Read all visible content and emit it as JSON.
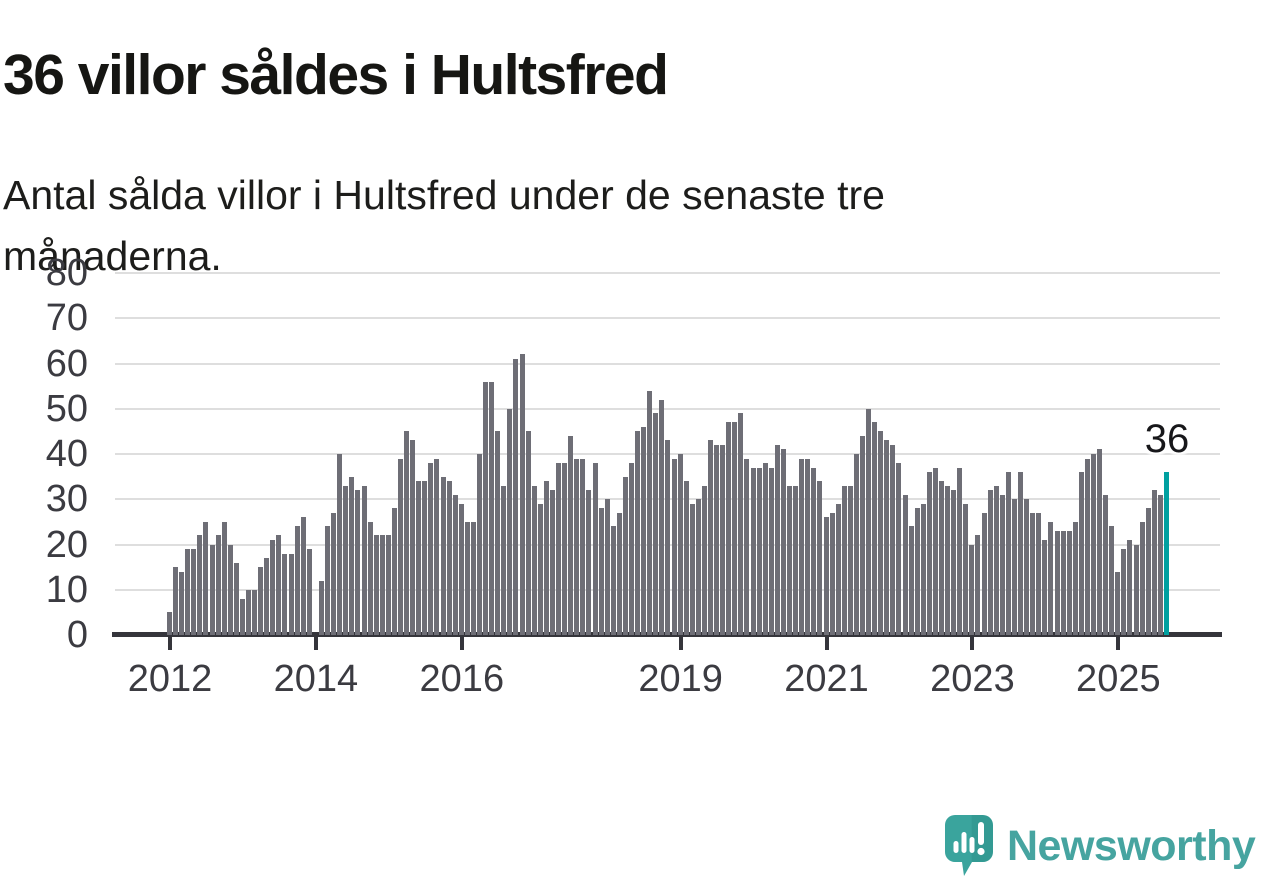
{
  "header": {
    "title": "36 villor såldes i Hultsfred",
    "subtitle": "Antal sålda villor i Hultsfred under de senaste tre månaderna."
  },
  "chart_data": {
    "type": "bar",
    "title": "36 villor såldes i Hultsfred",
    "subtitle": "Antal sålda villor i Hultsfred under de senaste tre månaderna.",
    "xlabel": "",
    "ylabel": "",
    "ylim": [
      0,
      80
    ],
    "y_ticks": [
      0,
      10,
      20,
      30,
      40,
      50,
      60,
      70,
      80
    ],
    "grid": true,
    "frequency": "monthly",
    "start_year": 2012,
    "x_ticks": [
      {
        "label": "2012",
        "index": 0
      },
      {
        "label": "2014",
        "index": 24
      },
      {
        "label": "2016",
        "index": 48
      },
      {
        "label": "2019",
        "index": 84
      },
      {
        "label": "2021",
        "index": 108
      },
      {
        "label": "2023",
        "index": 132
      },
      {
        "label": "2025",
        "index": 156
      }
    ],
    "values": [
      5,
      15,
      14,
      19,
      19,
      22,
      25,
      20,
      22,
      25,
      20,
      16,
      8,
      10,
      10,
      15,
      17,
      21,
      22,
      18,
      18,
      24,
      26,
      19,
      0,
      12,
      24,
      27,
      40,
      33,
      35,
      32,
      33,
      25,
      22,
      22,
      22,
      28,
      39,
      45,
      43,
      34,
      34,
      38,
      39,
      35,
      34,
      31,
      29,
      25,
      25,
      40,
      56,
      56,
      45,
      33,
      50,
      61,
      62,
      45,
      33,
      29,
      34,
      32,
      38,
      38,
      44,
      39,
      39,
      32,
      38,
      28,
      30,
      24,
      27,
      35,
      38,
      45,
      46,
      54,
      49,
      52,
      43,
      39,
      40,
      34,
      29,
      30,
      33,
      43,
      42,
      42,
      47,
      47,
      49,
      39,
      37,
      37,
      38,
      37,
      42,
      41,
      33,
      33,
      39,
      39,
      37,
      34,
      26,
      27,
      29,
      33,
      33,
      40,
      44,
      50,
      47,
      45,
      43,
      42,
      38,
      31,
      24,
      28,
      29,
      36,
      37,
      34,
      33,
      32,
      37,
      29,
      20,
      22,
      27,
      32,
      33,
      31,
      36,
      30,
      36,
      30,
      27,
      27,
      21,
      25,
      23,
      23,
      23,
      25,
      36,
      39,
      40,
      41,
      31,
      24,
      14,
      19,
      21,
      20,
      25,
      28,
      32,
      31,
      36
    ],
    "highlight": {
      "index": 164,
      "value": 36,
      "label": "36"
    },
    "colors": {
      "bar": "#6e6e76",
      "highlight_bar": "#00a0a0",
      "grid": "#dedede",
      "axis": "#35353b",
      "tick_label": "#3b3b41",
      "annotation": "#17171a"
    },
    "legend": null
  },
  "footer": {
    "brand": "Newsworthy",
    "logo_teal": "#38a19b",
    "wordmark_color": "#46a4a0"
  }
}
